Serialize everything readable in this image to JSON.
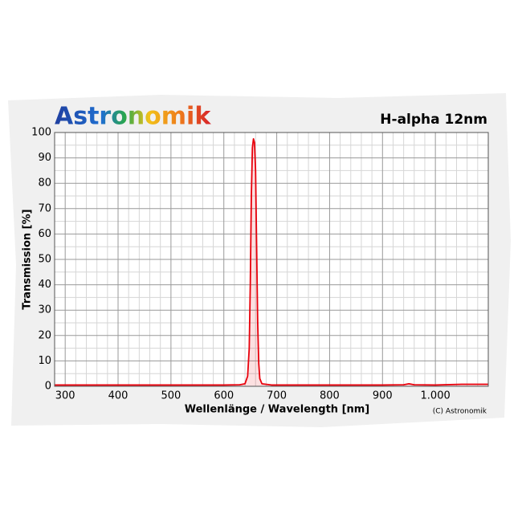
{
  "chart_data": {
    "type": "line",
    "brand": "Astronomik",
    "title": "H-alpha 12nm",
    "xlabel": "Wellenlänge / Wavelength [nm]",
    "ylabel": "Transmission [%]",
    "credit": "(C) Astronomik",
    "x": [
      280,
      400,
      600,
      630,
      640,
      645,
      648,
      650,
      652,
      654,
      656,
      658,
      660,
      662,
      664,
      666,
      668,
      672,
      690,
      800,
      900,
      940,
      950,
      960,
      1000,
      1050,
      1100
    ],
    "values": [
      0.5,
      0.5,
      0.5,
      0.6,
      1,
      4,
      15,
      40,
      75,
      94,
      97.5,
      96,
      85,
      55,
      25,
      9,
      3,
      1,
      0.5,
      0.5,
      0.5,
      0.6,
      1,
      0.6,
      0.5,
      0.8,
      0.8
    ],
    "color": "#e8000b",
    "xlim": [
      280,
      1100
    ],
    "ylim": [
      0,
      100
    ],
    "xticks": [
      300,
      400,
      500,
      600,
      700,
      800,
      900,
      {
        "value": 1000,
        "label": "1.000"
      }
    ],
    "yticks": [
      0,
      10,
      20,
      30,
      40,
      50,
      60,
      70,
      80,
      90,
      100
    ],
    "xminorticks": [
      280,
      320,
      340,
      360,
      380,
      420,
      440,
      460,
      480,
      520,
      540,
      560,
      580,
      620,
      640,
      660,
      680,
      720,
      740,
      760,
      780,
      820,
      840,
      860,
      880,
      920,
      940,
      960,
      980,
      1020,
      1040,
      1060,
      1080
    ],
    "yminorticks": [
      5,
      15,
      25,
      35,
      45,
      55,
      65,
      75,
      85,
      95
    ],
    "grid": true
  }
}
